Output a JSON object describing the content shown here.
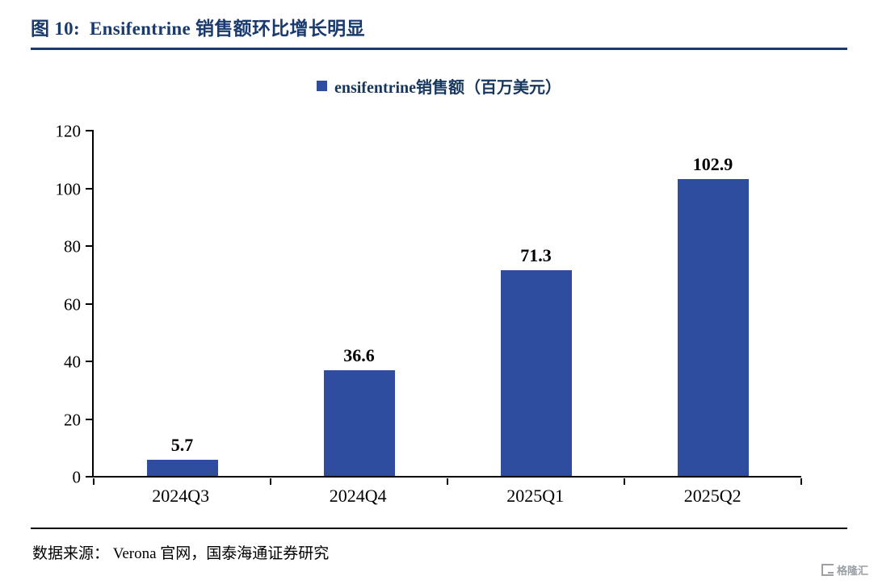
{
  "header": {
    "title": "图 10:  Ensifentrine 销售额环比增长明显"
  },
  "legend": {
    "label": "ensifentrine销售额（百万美元）",
    "marker": "blue-square"
  },
  "colors": {
    "bar": "#2e4d9e",
    "title": "#1a3a6e",
    "axis": "#000000",
    "watermark": "#9aa0a6"
  },
  "chart_data": {
    "type": "bar",
    "title": "图 10:  Ensifentrine 销售额环比增长明显",
    "legend": "ensifentrine销售额（百万美元）",
    "categories": [
      "2024Q3",
      "2024Q4",
      "2025Q1",
      "2025Q2"
    ],
    "values": [
      5.7,
      36.6,
      71.3,
      102.9
    ],
    "xlabel": "",
    "ylabel": "",
    "ylim": [
      0,
      120
    ],
    "yticks": [
      0,
      20,
      40,
      60,
      80,
      100,
      120
    ],
    "grid": false,
    "legend_position": "top-center",
    "bar_color": "#2e4d9e"
  },
  "footer": {
    "source": "数据来源： Verona 官网，国泰海通证券研究"
  },
  "watermark": {
    "text": "格隆汇"
  }
}
